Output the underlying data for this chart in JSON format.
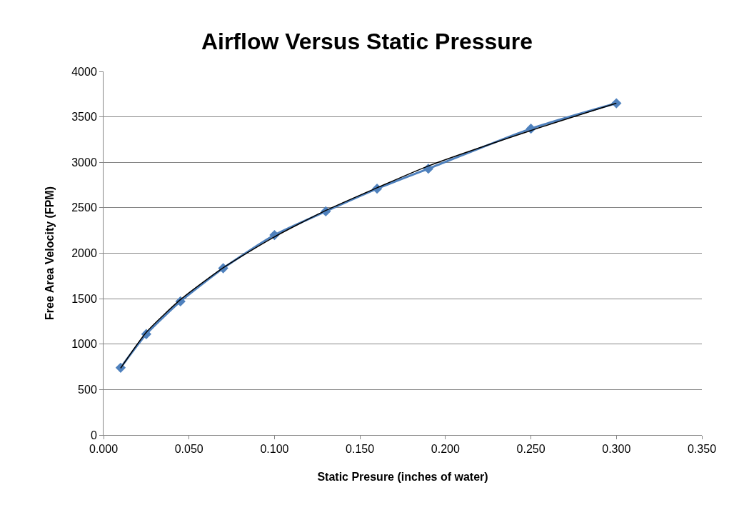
{
  "chart_data": {
    "type": "scatter",
    "title": "Airflow Versus Static Pressure",
    "xlabel": "Static Presure (inches of water)",
    "ylabel": "Free Area Velocity (FPM)",
    "x": [
      0.01,
      0.025,
      0.045,
      0.07,
      0.1,
      0.13,
      0.16,
      0.19,
      0.25,
      0.3
    ],
    "series": [
      {
        "color": "#4f81bd",
        "marker": "diamond",
        "values": [
          740,
          1110,
          1470,
          1835,
          2200,
          2460,
          2710,
          2930,
          3370,
          3650
        ]
      },
      {
        "type": "line",
        "color": "#000000",
        "marker": "none",
        "x": [
          0.01,
          0.025,
          0.045,
          0.07,
          0.1,
          0.13,
          0.16,
          0.19,
          0.25,
          0.3
        ],
        "values": [
          735,
          1130,
          1490,
          1840,
          2180,
          2470,
          2720,
          2960,
          3350,
          3650
        ]
      }
    ],
    "xlim": [
      0,
      0.35
    ],
    "xticks": [
      {
        "value": 0,
        "label": "0.000"
      },
      {
        "value": 0.05,
        "label": "0.050"
      },
      {
        "value": 0.1,
        "label": "0.100"
      },
      {
        "value": 0.15,
        "label": "0.150"
      },
      {
        "value": 0.2,
        "label": "0.200"
      },
      {
        "value": 0.25,
        "label": "0.250"
      },
      {
        "value": 0.3,
        "label": "0.300"
      },
      {
        "value": 0.35,
        "label": "0.350"
      }
    ],
    "ylim": [
      0,
      4000
    ],
    "yticks": [
      0,
      500,
      1000,
      1500,
      2000,
      2500,
      3000,
      3500,
      4000
    ],
    "grid": "y"
  }
}
